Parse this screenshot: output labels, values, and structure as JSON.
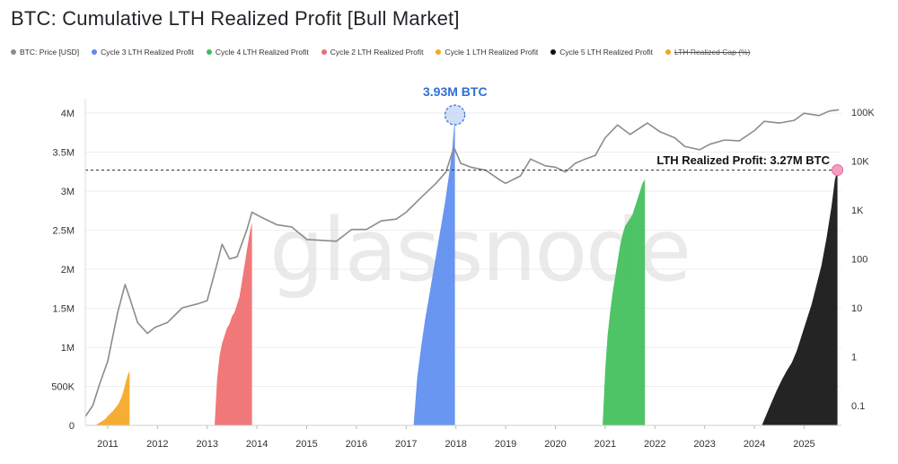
{
  "title": "BTC: Cumulative LTH Realized Profit [Bull Market]",
  "watermark": "glassnode",
  "legend": [
    {
      "label": "BTC: Price [USD]",
      "color": "#8c8c8c",
      "disabled": false
    },
    {
      "label": "Cycle 3 LTH Realized Profit",
      "color": "#5b8def",
      "disabled": false
    },
    {
      "label": "Cycle 4 LTH Realized Profit",
      "color": "#3fbf5a",
      "disabled": false
    },
    {
      "label": "Cycle 2 LTH Realized Profit",
      "color": "#f06c6c",
      "disabled": false
    },
    {
      "label": "Cycle 1 LTH Realized Profit",
      "color": "#f5a623",
      "disabled": false
    },
    {
      "label": "Cycle 5 LTH Realized Profit",
      "color": "#111111",
      "disabled": false
    },
    {
      "label": "LTH Realized Cap (%)",
      "color": "#f5a623",
      "disabled": true
    }
  ],
  "annotations": {
    "peak_label": "3.93M BTC",
    "lth_label": "LTH Realized Profit: 3.27M BTC"
  },
  "chart_data": {
    "type": "area",
    "x_ticks": [
      "2011",
      "2012",
      "2013",
      "2014",
      "2015",
      "2016",
      "2017",
      "2018",
      "2019",
      "2020",
      "2021",
      "2022",
      "2023",
      "2024",
      "2025"
    ],
    "y_left_ticks": [
      "0",
      "500K",
      "1M",
      "1.5M",
      "2M",
      "2.5M",
      "3M",
      "3.5M",
      "4M"
    ],
    "y_left_range": [
      0,
      4000000
    ],
    "y_right_ticks": [
      "0.1",
      "1",
      "10",
      "100",
      "1K",
      "10K",
      "100K"
    ],
    "y_right_scale": "log",
    "x_range": [
      2010.55,
      2025.75
    ],
    "reference_line": {
      "value": 3270000,
      "style": "dashed"
    },
    "series": [
      {
        "name": "Cycle 1 LTH Realized Profit",
        "color": "#f5a623",
        "x": [
          2010.75,
          2010.85,
          2010.95,
          2011.0,
          2011.05,
          2011.1,
          2011.15,
          2011.2,
          2011.25,
          2011.3,
          2011.35,
          2011.4,
          2011.44
        ],
        "y": [
          0,
          40000,
          80000,
          120000,
          150000,
          180000,
          220000,
          260000,
          320000,
          400000,
          520000,
          640000,
          700000
        ]
      },
      {
        "name": "Cycle 2 LTH Realized Profit",
        "color": "#f06c6c",
        "x": [
          2013.15,
          2013.2,
          2013.25,
          2013.3,
          2013.35,
          2013.4,
          2013.45,
          2013.5,
          2013.55,
          2013.6,
          2013.65,
          2013.7,
          2013.75,
          2013.8,
          2013.85,
          2013.9
        ],
        "y": [
          0,
          600000,
          900000,
          1050000,
          1150000,
          1250000,
          1300000,
          1400000,
          1450000,
          1550000,
          1650000,
          1850000,
          2050000,
          2250000,
          2450000,
          2600000
        ]
      },
      {
        "name": "Cycle 3 LTH Realized Profit",
        "color": "#5b8def",
        "x": [
          2017.15,
          2017.22,
          2017.3,
          2017.38,
          2017.46,
          2017.54,
          2017.62,
          2017.7,
          2017.78,
          2017.86,
          2017.92,
          2017.96,
          2017.98
        ],
        "y": [
          0,
          600000,
          1000000,
          1350000,
          1650000,
          1950000,
          2250000,
          2550000,
          2850000,
          3200000,
          3500000,
          3800000,
          3930000
        ]
      },
      {
        "name": "Cycle 4 LTH Realized Profit",
        "color": "#3fbf5a",
        "x": [
          2020.95,
          2021.0,
          2021.05,
          2021.1,
          2021.15,
          2021.2,
          2021.25,
          2021.3,
          2021.35,
          2021.4,
          2021.45,
          2021.5,
          2021.55,
          2021.6,
          2021.65,
          2021.7,
          2021.75,
          2021.8
        ],
        "y": [
          0,
          700000,
          1150000,
          1450000,
          1700000,
          1900000,
          2100000,
          2300000,
          2450000,
          2550000,
          2600000,
          2650000,
          2700000,
          2800000,
          2900000,
          3000000,
          3100000,
          3150000
        ]
      },
      {
        "name": "Cycle 5 LTH Realized Profit",
        "color": "#111111",
        "x": [
          2024.15,
          2024.25,
          2024.35,
          2024.45,
          2024.55,
          2024.65,
          2024.75,
          2024.85,
          2024.95,
          2025.05,
          2025.15,
          2025.25,
          2025.35,
          2025.45,
          2025.55,
          2025.62,
          2025.67
        ],
        "y": [
          0,
          150000,
          300000,
          450000,
          580000,
          700000,
          800000,
          950000,
          1150000,
          1350000,
          1550000,
          1800000,
          2050000,
          2400000,
          2800000,
          3150000,
          3270000
        ]
      },
      {
        "name": "BTC: Price [USD]",
        "color": "#8c8c8c",
        "axis": "right",
        "x": [
          2010.55,
          2010.7,
          2010.85,
          2011.0,
          2011.2,
          2011.35,
          2011.45,
          2011.6,
          2011.8,
          2011.95,
          2012.2,
          2012.5,
          2012.8,
          2013.0,
          2013.2,
          2013.3,
          2013.45,
          2013.6,
          2013.8,
          2013.9,
          2014.1,
          2014.4,
          2014.7,
          2015.0,
          2015.3,
          2015.6,
          2015.9,
          2016.2,
          2016.5,
          2016.8,
          2017.0,
          2017.3,
          2017.6,
          2017.8,
          2017.96,
          2018.1,
          2018.3,
          2018.6,
          2018.9,
          2019.0,
          2019.3,
          2019.5,
          2019.8,
          2020.0,
          2020.2,
          2020.4,
          2020.6,
          2020.8,
          2021.0,
          2021.25,
          2021.5,
          2021.85,
          2022.1,
          2022.4,
          2022.6,
          2022.9,
          2023.1,
          2023.4,
          2023.7,
          2024.0,
          2024.2,
          2024.5,
          2024.8,
          2025.0,
          2025.3,
          2025.5,
          2025.7
        ],
        "y": [
          0.06,
          0.1,
          0.3,
          0.8,
          8,
          30,
          15,
          5,
          3,
          4,
          5,
          10,
          12,
          14,
          80,
          200,
          100,
          110,
          400,
          900,
          700,
          500,
          450,
          250,
          240,
          230,
          400,
          400,
          600,
          650,
          900,
          1800,
          3500,
          6000,
          19000,
          9000,
          7500,
          6500,
          4000,
          3500,
          5000,
          11000,
          8000,
          7500,
          6000,
          9000,
          11000,
          13000,
          30000,
          55000,
          35000,
          60000,
          40000,
          30000,
          20000,
          17000,
          22000,
          27000,
          26000,
          42000,
          65000,
          60000,
          68000,
          95000,
          85000,
          105000,
          112000
        ]
      }
    ]
  }
}
